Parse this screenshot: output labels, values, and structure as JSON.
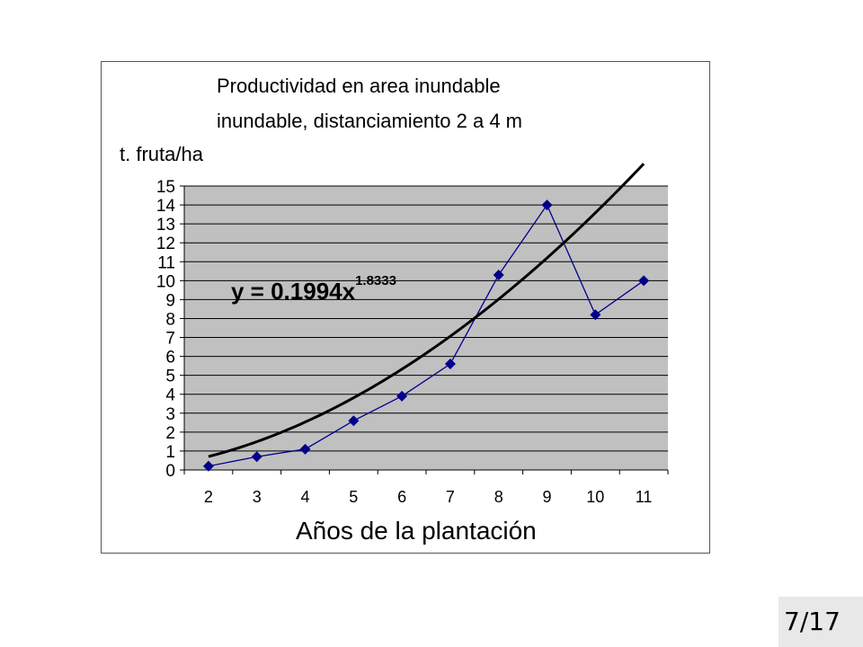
{
  "page_number": "7/17",
  "chart_data": {
    "type": "line",
    "title_lines": [
      "Productividad en area inundable",
      "inundable, distanciamiento 2 a 4 m"
    ],
    "ylabel": "t. fruta/ha",
    "xlabel": "Años de la plantación",
    "categories": [
      "2",
      "3",
      "4",
      "5",
      "6",
      "7",
      "8",
      "9",
      "10",
      "11"
    ],
    "x": [
      2,
      3,
      4,
      5,
      6,
      7,
      8,
      9,
      10,
      11
    ],
    "series": [
      {
        "values": [
          0.2,
          0.7,
          1.1,
          2.6,
          3.9,
          5.6,
          10.3,
          14.0,
          8.2,
          10.0
        ],
        "color": "#00008b",
        "marker": "diamond"
      }
    ],
    "trendline": {
      "type": "power",
      "equation_base": "y = 0.1994x",
      "equation_exponent": "1.8333",
      "coefficient": 0.1994,
      "exponent": 1.8333,
      "color": "#000000"
    },
    "yticks": [
      "0",
      "1",
      "2",
      "3",
      "4",
      "5",
      "6",
      "7",
      "8",
      "9",
      "10",
      "11",
      "12",
      "13",
      "14",
      "15"
    ],
    "ylim": [
      0,
      15
    ],
    "grid": true,
    "plot_background": "#c0c0c0",
    "legend": "none"
  }
}
